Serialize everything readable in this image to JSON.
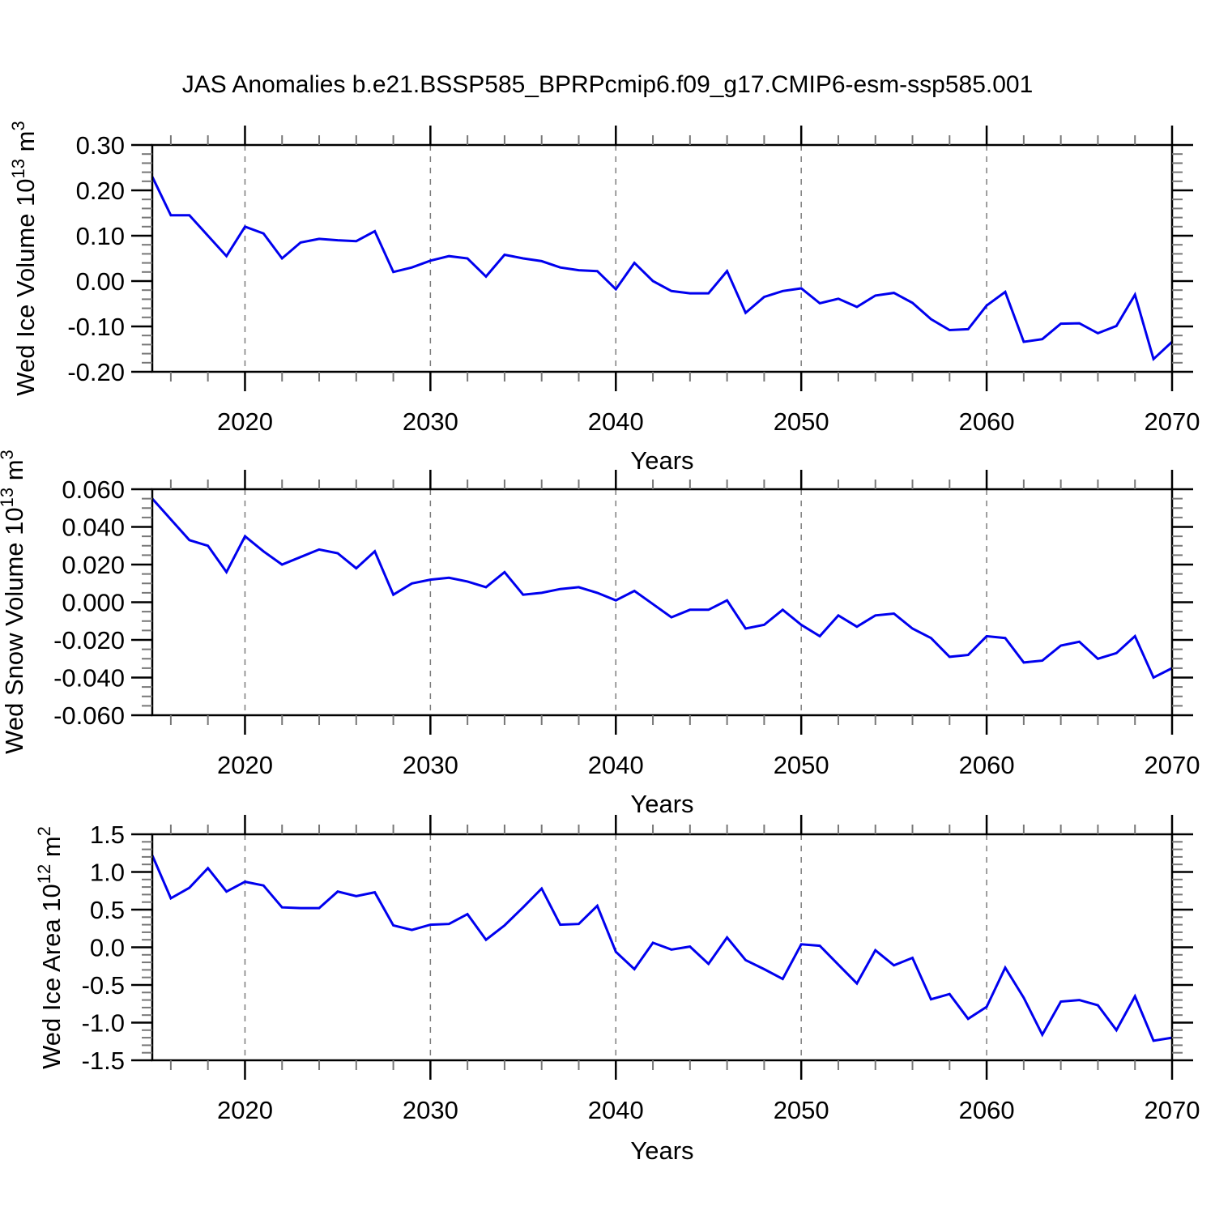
{
  "title": "JAS Anomalies b.e21.BSSP585_BPRPcmip6.f09_g17.CMIP6-esm-ssp585.001",
  "style": {
    "line_color": "#0000EE",
    "grid_color": "#7d7d7d",
    "frame_color": "#000000",
    "minor_tick_color": "#777777",
    "text_color": "#000000"
  },
  "x_axis": {
    "label": "Years",
    "min": 2015,
    "max": 2070,
    "major_ticks": [
      2020,
      2030,
      2040,
      2050,
      2060,
      2070
    ],
    "major_tick_labels": [
      "2020",
      "2030",
      "2040",
      "2050",
      "2060",
      "2070"
    ],
    "gridline_years": [
      2020,
      2030,
      2040,
      2050,
      2060
    ],
    "years": [
      2015,
      2016,
      2017,
      2018,
      2019,
      2020,
      2021,
      2022,
      2023,
      2024,
      2025,
      2026,
      2027,
      2028,
      2029,
      2030,
      2031,
      2032,
      2033,
      2034,
      2035,
      2036,
      2037,
      2038,
      2039,
      2040,
      2041,
      2042,
      2043,
      2044,
      2045,
      2046,
      2047,
      2048,
      2049,
      2050,
      2051,
      2052,
      2053,
      2054,
      2055,
      2056,
      2057,
      2058,
      2059,
      2060,
      2061,
      2062,
      2063,
      2064,
      2065,
      2066,
      2067,
      2068,
      2069,
      2070
    ]
  },
  "chart_data": [
    {
      "type": "line",
      "name": "wed-ice-volume",
      "ylabel": {
        "t1": "Wed Ice Volume 10",
        "e1": "13",
        "t2": " m",
        "e2": "3"
      },
      "ylim": [
        -0.2,
        0.3
      ],
      "ymajor": 0.1,
      "yminor": 0.02,
      "ytick_values": [
        0.3,
        0.2,
        0.1,
        0.0,
        -0.1,
        -0.2
      ],
      "ytick_labels": [
        "0.30",
        "0.20",
        "0.10",
        "0.00",
        "-0.10",
        "-0.20"
      ],
      "values": [
        0.23,
        0.145,
        0.145,
        0.1,
        0.055,
        0.12,
        0.105,
        0.05,
        0.085,
        0.093,
        0.09,
        0.088,
        0.11,
        0.02,
        0.03,
        0.045,
        0.055,
        0.05,
        0.01,
        0.058,
        0.05,
        0.044,
        0.03,
        0.024,
        0.022,
        -0.018,
        0.04,
        0.0,
        -0.022,
        -0.027,
        -0.027,
        0.022,
        -0.07,
        -0.035,
        -0.022,
        -0.016,
        -0.049,
        -0.039,
        -0.057,
        -0.032,
        -0.026,
        -0.048,
        -0.084,
        -0.108,
        -0.106,
        -0.054,
        -0.024,
        -0.134,
        -0.128,
        -0.094,
        -0.093,
        -0.115,
        -0.099,
        -0.03,
        -0.172,
        -0.134
      ]
    },
    {
      "type": "line",
      "name": "wed-snow-volume",
      "ylabel": {
        "t1": "Wed Snow Volume 10",
        "e1": "13",
        "t2": " m",
        "e2": "3"
      },
      "ylim": [
        -0.06,
        0.06
      ],
      "ymajor": 0.02,
      "yminor": 0.005,
      "ytick_values": [
        0.06,
        0.04,
        0.02,
        0.0,
        -0.02,
        -0.04,
        -0.06
      ],
      "ytick_labels": [
        "0.060",
        "0.040",
        "0.020",
        "0.000",
        "-0.020",
        "-0.040",
        "-0.060"
      ],
      "values": [
        0.055,
        0.044,
        0.033,
        0.03,
        0.016,
        0.035,
        0.027,
        0.02,
        0.024,
        0.028,
        0.026,
        0.018,
        0.027,
        0.004,
        0.01,
        0.012,
        0.013,
        0.011,
        0.008,
        0.016,
        0.004,
        0.005,
        0.007,
        0.008,
        0.005,
        0.001,
        0.006,
        -0.001,
        -0.008,
        -0.004,
        -0.004,
        0.001,
        -0.014,
        -0.012,
        -0.004,
        -0.012,
        -0.018,
        -0.007,
        -0.013,
        -0.007,
        -0.006,
        -0.014,
        -0.019,
        -0.029,
        -0.028,
        -0.018,
        -0.019,
        -0.032,
        -0.031,
        -0.023,
        -0.021,
        -0.03,
        -0.027,
        -0.018,
        -0.04,
        -0.035
      ]
    },
    {
      "type": "line",
      "name": "wed-ice-area",
      "ylabel": {
        "t1": "Wed Ice Area 10",
        "e1": "12",
        "t2": " m",
        "e2": "2"
      },
      "ylim": [
        -1.5,
        1.5
      ],
      "ymajor": 0.5,
      "yminor": 0.1,
      "ytick_values": [
        1.5,
        1.0,
        0.5,
        0.0,
        -0.5,
        -1.0,
        -1.5
      ],
      "ytick_labels": [
        "1.5",
        "1.0",
        "0.5",
        "0.0",
        "-0.5",
        "-1.0",
        "-1.5"
      ],
      "values": [
        1.22,
        0.65,
        0.79,
        1.05,
        0.74,
        0.87,
        0.82,
        0.53,
        0.52,
        0.52,
        0.74,
        0.68,
        0.73,
        0.29,
        0.23,
        0.3,
        0.31,
        0.44,
        0.1,
        0.29,
        0.53,
        0.78,
        0.3,
        0.31,
        0.55,
        -0.06,
        -0.29,
        0.06,
        -0.03,
        0.01,
        -0.22,
        0.13,
        -0.17,
        -0.29,
        -0.42,
        0.04,
        0.02,
        -0.23,
        -0.48,
        -0.04,
        -0.24,
        -0.14,
        -0.69,
        -0.62,
        -0.95,
        -0.79,
        -0.27,
        -0.67,
        -1.16,
        -0.72,
        -0.7,
        -0.77,
        -1.1,
        -0.65,
        -1.24,
        -1.2
      ]
    }
  ]
}
